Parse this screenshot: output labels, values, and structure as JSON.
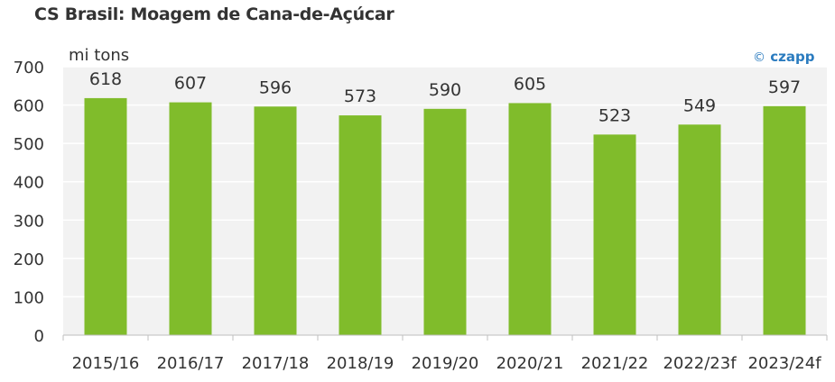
{
  "chart_data": {
    "type": "bar",
    "title": "CS Brasil: Moagem de Cana-de-Açúcar",
    "unit_label": "mi tons",
    "categories": [
      "2015/16",
      "2016/17",
      "2017/18",
      "2018/19",
      "2019/20",
      "2020/21",
      "2021/22",
      "2022/23f",
      "2023/24f"
    ],
    "values": [
      618,
      607,
      596,
      573,
      590,
      605,
      523,
      549,
      597
    ],
    "ylim": [
      0,
      700
    ],
    "yticks": [
      0,
      100,
      200,
      300,
      400,
      500,
      600,
      700
    ],
    "grid": true,
    "bar_color": "#80bc2b",
    "plot_background": "#f2f2f2"
  },
  "logo": {
    "symbol": "©",
    "text": "czapp"
  }
}
